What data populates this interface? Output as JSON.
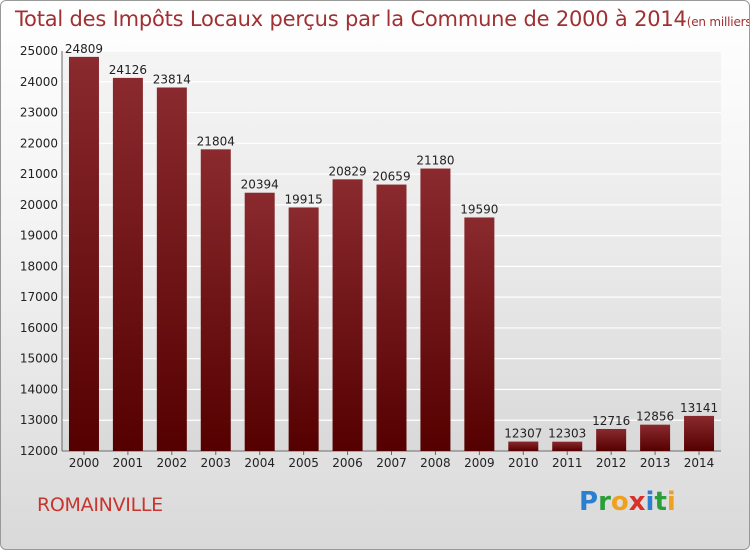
{
  "chart_data": {
    "type": "bar",
    "title": "Total des Impôts Locaux perçus par la Commune de 2000 à 2014",
    "title_unit": "(en milliers d'€)",
    "xlabel": "",
    "ylabel": "",
    "categories": [
      "2000",
      "2001",
      "2002",
      "2003",
      "2004",
      "2005",
      "2006",
      "2007",
      "2008",
      "2009",
      "2010",
      "2011",
      "2012",
      "2013",
      "2014"
    ],
    "values": [
      24809,
      24126,
      23814,
      21804,
      20394,
      19915,
      20829,
      20659,
      21180,
      19590,
      12307,
      12303,
      12716,
      12856,
      13141
    ],
    "ylim": [
      12000,
      25000
    ],
    "yticks": [
      12000,
      13000,
      14000,
      15000,
      16000,
      17000,
      18000,
      19000,
      20000,
      21000,
      22000,
      23000,
      24000,
      25000
    ],
    "grid": "horizontal",
    "bar_color_top": "#8a2a2e",
    "bar_color_bottom": "#550000"
  },
  "footer": {
    "city": "ROMAINVILLE",
    "logo": {
      "letters": [
        "P",
        "r",
        "o",
        "x",
        "i",
        "t",
        "i"
      ],
      "colors": [
        "#2a7fd1",
        "#2a9e3a",
        "#f0a020",
        "#d8302a",
        "#2a7fd1",
        "#2a9e3a",
        "#f0a020"
      ]
    }
  },
  "colors": {
    "title": "#a03032",
    "city": "#c8352e",
    "grid": "#ffffff"
  }
}
